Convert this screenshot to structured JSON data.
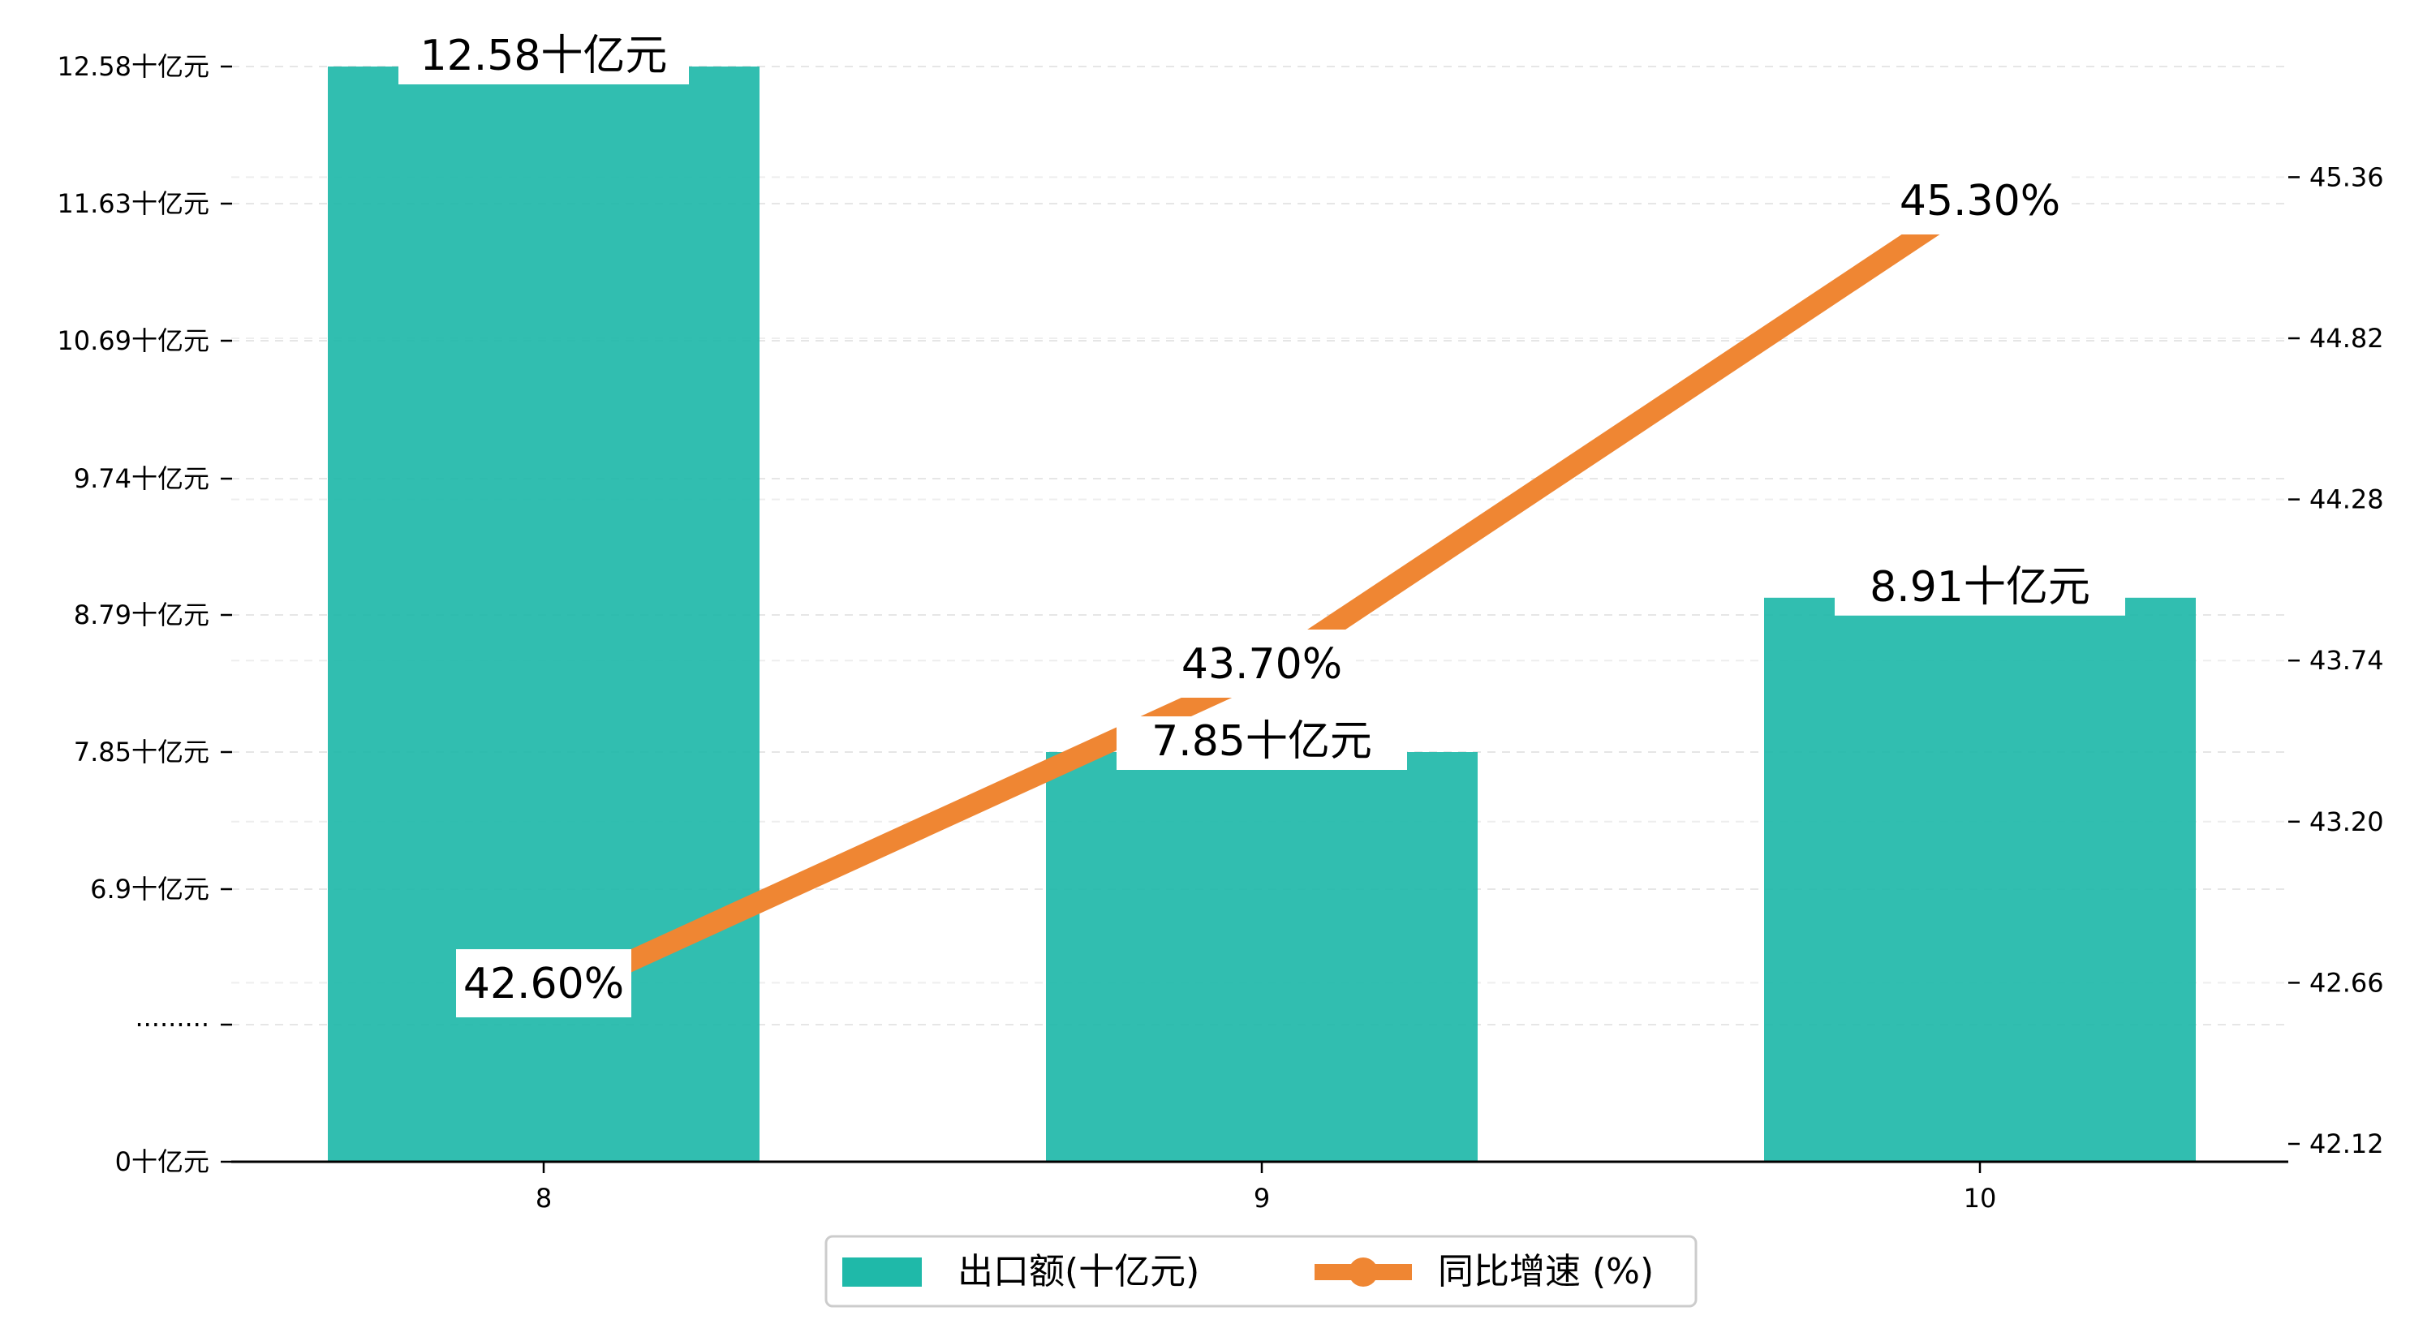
{
  "chart_data": {
    "type": "bar",
    "categories": [
      "8",
      "9",
      "10"
    ],
    "series": [
      {
        "name": "出口额(十亿元)",
        "type": "bar",
        "axis": "left",
        "values": [
          12.58,
          7.85,
          8.91
        ],
        "labels": [
          "12.58十亿元",
          "7.85十亿元",
          "8.91十亿元"
        ],
        "color": "#1fb9a9"
      },
      {
        "name": "同比增速 (%)",
        "type": "line",
        "axis": "right",
        "values": [
          42.6,
          43.7,
          45.3
        ],
        "labels": [
          "42.60%",
          "43.70%",
          "45.30%"
        ],
        "color": "#ef8633"
      }
    ],
    "y_left": {
      "ylim": [
        0,
        12.58
      ],
      "ticks": [
        0,
        5.5,
        6.9,
        7.85,
        8.79,
        9.74,
        10.69,
        11.63,
        12.58
      ],
      "tick_labels": [
        "0十亿元",
        "·········",
        "6.9十亿元",
        "7.85十亿元",
        "8.79十亿元",
        "9.74十亿元",
        "10.69十亿元",
        "11.63十亿元",
        "12.58十亿元"
      ]
    },
    "y_right": {
      "ylim": [
        42.12,
        45.72
      ],
      "ticks": [
        42.12,
        42.66,
        43.2,
        43.74,
        44.28,
        44.82,
        45.36
      ],
      "tick_labels": [
        "42.12",
        "42.66",
        "43.20",
        "43.74",
        "44.28",
        "44.82",
        "45.36"
      ]
    },
    "grid": true,
    "legend": "bottom-center"
  }
}
